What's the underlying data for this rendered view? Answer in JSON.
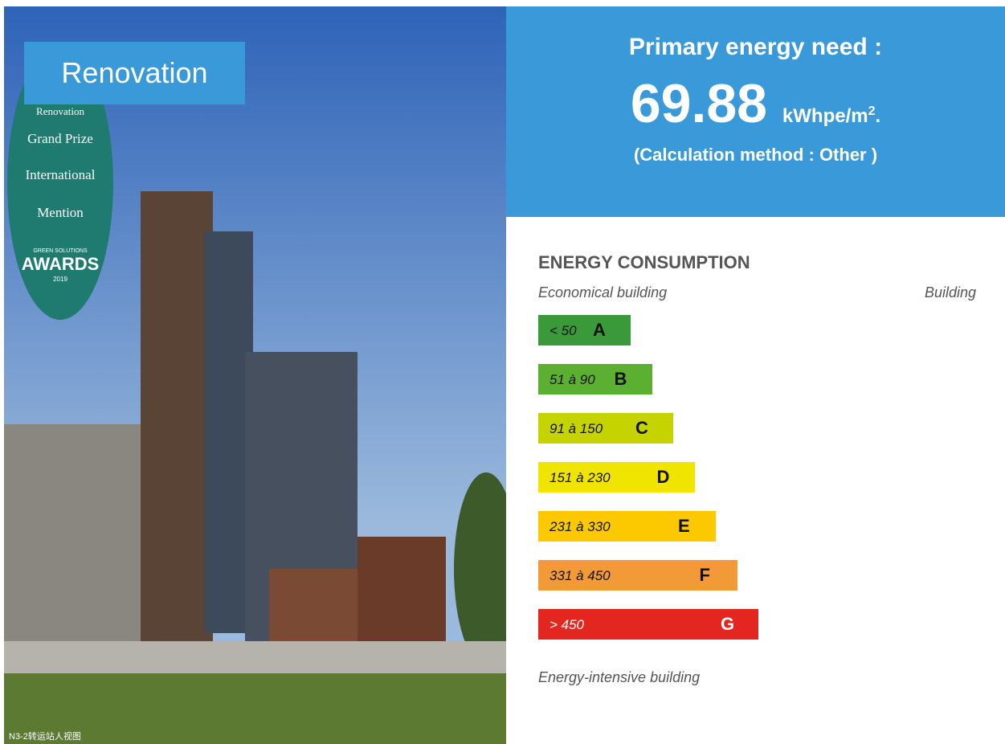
{
  "photo": {
    "tag": "Renovation",
    "badge": [
      "Renovation",
      "Grand Prize",
      "International",
      "Mention",
      "GREEN SOLUTIONS",
      "AWARDS",
      "2019"
    ],
    "caption": "N3-2转运站人视图"
  },
  "need": {
    "title": "Primary energy need :",
    "value": "69.88",
    "unit_base": "kWhpe/m",
    "unit_exponent": "2",
    "unit_end": ".",
    "method": "(Calculation method : Other )"
  },
  "energy": {
    "heading": "ENERGY CONSUMPTION",
    "scale_low": "Economical building",
    "scale_high": "Building",
    "footer": "Energy-intensive building",
    "classes": [
      {
        "range": "< 50",
        "letter": "A",
        "color": "#3a9a3a"
      },
      {
        "range": "51 à 90",
        "letter": "B",
        "color": "#5cb031"
      },
      {
        "range": "91 à 150",
        "letter": "C",
        "color": "#c5d400"
      },
      {
        "range": "151 à 230",
        "letter": "D",
        "color": "#f0e500"
      },
      {
        "range": "231 à 330",
        "letter": "E",
        "color": "#fcc800"
      },
      {
        "range": "331 à 450",
        "letter": "F",
        "color": "#f39a38"
      },
      {
        "range": "> 450",
        "letter": "G",
        "color": "#e3261f"
      }
    ]
  }
}
